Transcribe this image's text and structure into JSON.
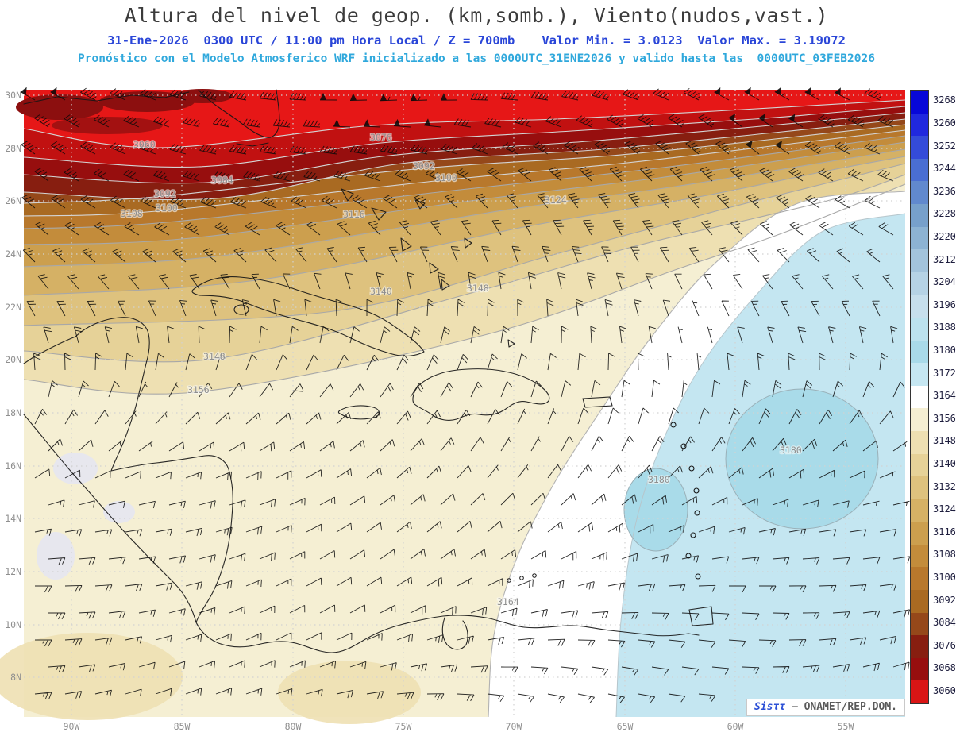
{
  "header": {
    "title": "Altura del nivel de geop. (km,somb.), Viento(nudos,vast.)",
    "sub1_left": "31-Ene-2026  0300 UTC / 11:00 pm Hora Local / Z = 700mb",
    "sub1_right": "Valor Min. = 3.0123  Valor Max. = 3.19072",
    "sub2": "Pronóstico con el Modelo Atmosferico WRF inicializado a las 0000UTC_31ENE2026 y valido hasta las  0000UTC_03FEB2026"
  },
  "watermark": {
    "brand": "Sisττ",
    "rest": "— ONAMET/REP.DOM."
  },
  "chart_data": {
    "type": "heatmap",
    "title": "Altura del nivel de geop. (km,somb.), Viento(nudos,vast.)",
    "datetime": "31-Ene-2026 0300 UTC / 11:00 pm Hora Local",
    "level": "Z = 700mb",
    "valor_min": "3.0123",
    "valor_max": "3.19072",
    "model_line": "Pronóstico con el Modelo Atmosferico WRF inicializado a las 0000UTC_31ENE2026 y valido hasta las 0000UTC_03FEB2026",
    "x_ticks": [
      "90W",
      "85W",
      "80W",
      "75W",
      "70W",
      "65W",
      "60W",
      "55W"
    ],
    "y_ticks": [
      "30N",
      "28N",
      "26N",
      "24N",
      "22N",
      "20N",
      "18N",
      "16N",
      "14N",
      "12N",
      "10N",
      "8N"
    ],
    "colorbar": {
      "labels": [
        "3268",
        "3260",
        "3252",
        "3244",
        "3236",
        "3228",
        "3220",
        "3212",
        "3204",
        "3196",
        "3188",
        "3180",
        "3172",
        "3164",
        "3156",
        "3148",
        "3140",
        "3132",
        "3124",
        "3116",
        "3108",
        "3100",
        "3092",
        "3084",
        "3076",
        "3068",
        "3060"
      ],
      "colors": [
        "#0707d8",
        "#2028de",
        "#344bd9",
        "#4a6ed3",
        "#6189ce",
        "#77a0cb",
        "#8db3d3",
        "#a3c4dc",
        "#b6d3e5",
        "#c7dfec",
        "#bce2ee",
        "#a9dae9",
        "#c6e7f2",
        "#ffffff",
        "#f5efd3",
        "#eee0b2",
        "#e6d298",
        "#dec27e",
        "#d5b165",
        "#cc9f4e",
        "#c38c3b",
        "#b8782c",
        "#a96a22",
        "#95481a",
        "#871e10",
        "#970e0e",
        "#d91515"
      ]
    },
    "field_colors": {
      "lt_3060": "#e61717",
      "b3060": "#c11111",
      "b3068": "#970e0e",
      "b3076": "#871e10",
      "b3084": "#95481a",
      "b3092": "#a96a22",
      "b3100": "#b8782c",
      "b3108": "#c38c3b",
      "b3116": "#cc9f4e",
      "b3124": "#d5b165",
      "b3132": "#dec27e",
      "b3140": "#e6d298",
      "b3148": "#eee0b2",
      "b3156": "#f5efd3",
      "b3164": "#ffffff",
      "b3172": "#c4e6f1",
      "b3180": "#a9dbe9",
      "patch_gray": "#e7e7ee",
      "patch_dark": "#8c0f0f"
    },
    "contour_labels": [
      {
        "t": "3060",
        "x": 168,
        "y": 186
      },
      {
        "t": "3076",
        "x": 466,
        "y": 177
      },
      {
        "t": "3092",
        "x": 520,
        "y": 213
      },
      {
        "t": "3100",
        "x": 548,
        "y": 228
      },
      {
        "t": "3084",
        "x": 266,
        "y": 231
      },
      {
        "t": "3092",
        "x": 194,
        "y": 248
      },
      {
        "t": "3100",
        "x": 196,
        "y": 266
      },
      {
        "t": "3108",
        "x": 152,
        "y": 273
      },
      {
        "t": "3116",
        "x": 432,
        "y": 274
      },
      {
        "t": "3124",
        "x": 686,
        "y": 256
      },
      {
        "t": "3140",
        "x": 466,
        "y": 371
      },
      {
        "t": "3148",
        "x": 588,
        "y": 367
      },
      {
        "t": "3148",
        "x": 256,
        "y": 453
      },
      {
        "t": "3156",
        "x": 236,
        "y": 495
      },
      {
        "t": "3164",
        "x": 626,
        "y": 762
      },
      {
        "t": "3180",
        "x": 982,
        "y": 571
      },
      {
        "t": "3180",
        "x": 816,
        "y": 608
      }
    ]
  }
}
